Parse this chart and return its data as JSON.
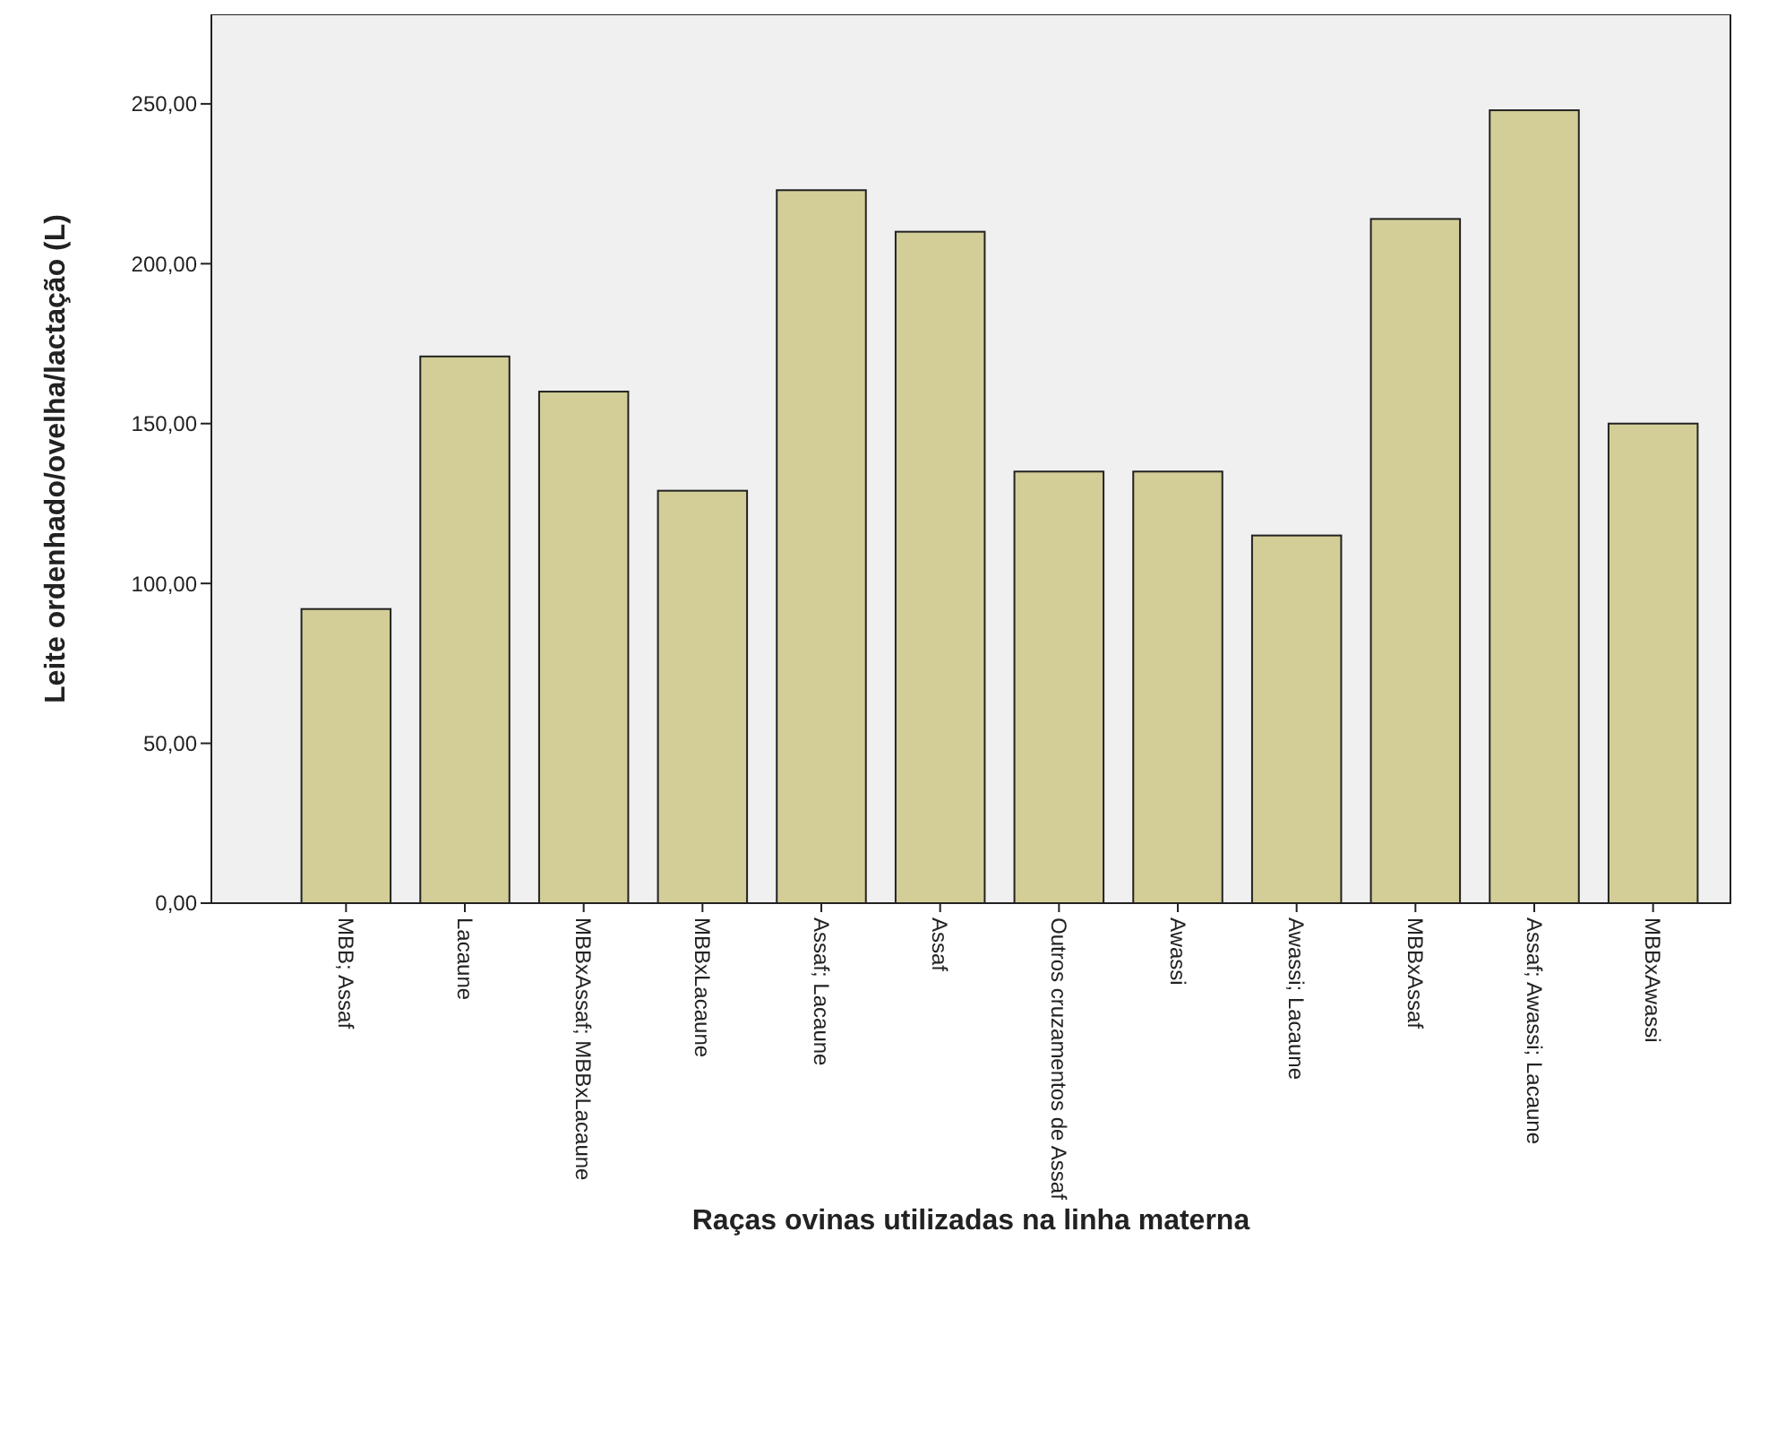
{
  "chart_data": {
    "type": "bar",
    "xlabel": "Raças ovinas utilizadas na linha materna",
    "ylabel": "Leite ordenhado/ovelha/lactação (L)",
    "categories": [
      "MBB; Assaf",
      "Lacaune",
      "MBBxAssaf; MBBxLacaune",
      "MBBxLacaune",
      "Assaf; Lacaune",
      "Assaf",
      "Outros cruzamentos de Assaf",
      "Awassi",
      "Awassi; Lacaune",
      "MBBxAssaf",
      "Assaf; Awassi; Lacaune",
      "MBBxAwassi"
    ],
    "values": [
      92,
      171,
      160,
      129,
      223,
      210,
      135,
      135,
      115,
      214,
      248,
      150
    ],
    "color": "#d3ce97",
    "ylim": [
      0,
      278
    ],
    "yticks": [
      {
        "value": 0,
        "label": "0,00"
      },
      {
        "value": 50,
        "label": "50,00"
      },
      {
        "value": 100,
        "label": "100,00"
      },
      {
        "value": 150,
        "label": "150,00"
      },
      {
        "value": 200,
        "label": "200,00"
      },
      {
        "value": 250,
        "label": "250,00"
      }
    ],
    "grid": false
  }
}
